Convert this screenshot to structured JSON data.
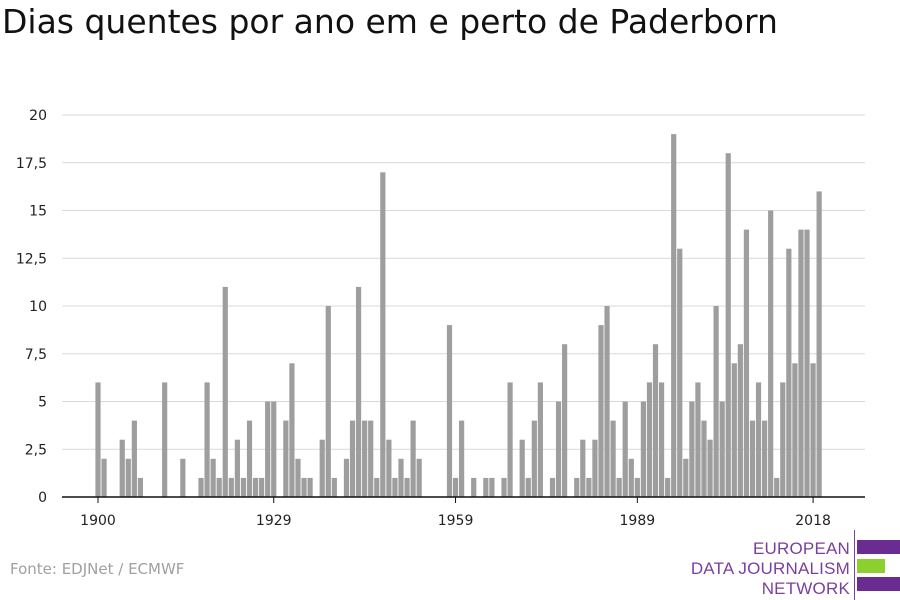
{
  "chart_data": {
    "type": "bar",
    "title": "Dias quentes por ano em e perto de Paderborn",
    "xlabel": "",
    "ylabel": "",
    "ylim": [
      0,
      20
    ],
    "yticks": [
      "0",
      "2,5",
      "5",
      "7,5",
      "10",
      "12,5",
      "15",
      "17,5",
      "20"
    ],
    "xticks": [
      "1900",
      "1929",
      "1959",
      "1989",
      "2018"
    ],
    "grid": true,
    "bar_color": "#9e9e9e",
    "x_start": 1900,
    "values": [
      6,
      2,
      0,
      0,
      3,
      2,
      4,
      1,
      0,
      0,
      0,
      6,
      0,
      0,
      2,
      0,
      0,
      1,
      6,
      2,
      1,
      11,
      1,
      3,
      1,
      4,
      1,
      1,
      5,
      5,
      0,
      4,
      7,
      2,
      1,
      1,
      0,
      3,
      10,
      1,
      0,
      2,
      4,
      11,
      4,
      4,
      1,
      17,
      3,
      1,
      2,
      1,
      4,
      2,
      0,
      0,
      0,
      0,
      9,
      1,
      4,
      0,
      1,
      0,
      1,
      1,
      0,
      1,
      6,
      0,
      3,
      1,
      4,
      6,
      0,
      1,
      5,
      8,
      0,
      1,
      3,
      1,
      3,
      9,
      10,
      4,
      1,
      5,
      2,
      1,
      5,
      6,
      8,
      6,
      1,
      19,
      13,
      2,
      5,
      6,
      4,
      3,
      10,
      5,
      18,
      7,
      8,
      14,
      4,
      6,
      4,
      15,
      1,
      6,
      13,
      7,
      14,
      14,
      7,
      16
    ]
  },
  "source": {
    "text": "Fonte: EDJNet / ECMWF"
  },
  "logo": {
    "line1": "EUROPEAN",
    "line2": "DATA JOURNALISM",
    "line3": "NETWORK",
    "purple": "#6a2c91",
    "green": "#8ccf2f"
  }
}
